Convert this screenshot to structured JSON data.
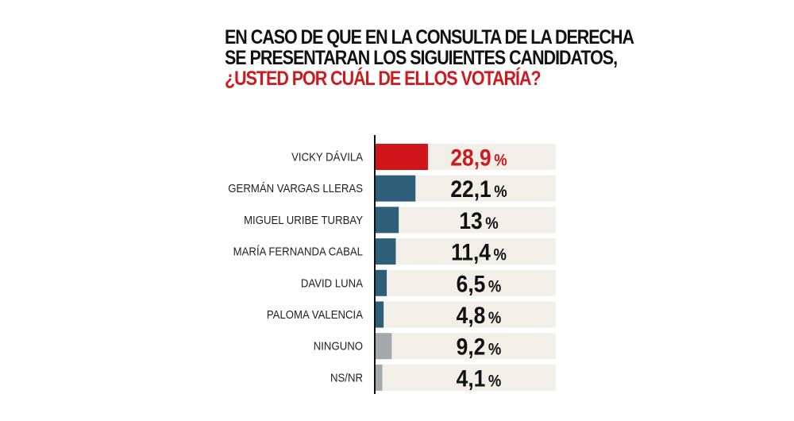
{
  "chart_data": {
    "type": "bar",
    "orientation": "horizontal",
    "title_lines": [
      "EN CASO DE QUE EN LA CONSULTA DE LA DERECHA",
      "SE PRESENTARAN LOS SIGUIENTES CANDIDATOS,",
      "¿USTED POR CUÁL DE ELLOS VOTARÍA?"
    ],
    "categories": [
      "VICKY DÁVILA",
      "GERMÁN VARGAS LLERAS",
      "MIGUEL URIBE TURBAY",
      "MARÍA FERNANDA CABAL",
      "DAVID LUNA",
      "PALOMA VALENCIA",
      "NINGUNO",
      "NS/NR"
    ],
    "values": [
      28.9,
      22.1,
      13,
      11.4,
      6.5,
      4.8,
      9.2,
      4.1
    ],
    "value_labels": [
      "28,9",
      "22,1",
      "13",
      "11,4",
      "6,5",
      "4,8",
      "9,2",
      "4,1"
    ],
    "unit": "%",
    "bar_colors": [
      "#d0161b",
      "#2e5f78",
      "#2e5f78",
      "#2e5f78",
      "#2e5f78",
      "#2e5f78",
      "#a2a9ad",
      "#a2a9ad"
    ],
    "value_colors": [
      "#cc1a1f",
      "#111111",
      "#111111",
      "#111111",
      "#111111",
      "#111111",
      "#111111",
      "#111111"
    ],
    "track_color": "#f2efe8",
    "accent_color": "#cc1a1f",
    "grid": false
  }
}
